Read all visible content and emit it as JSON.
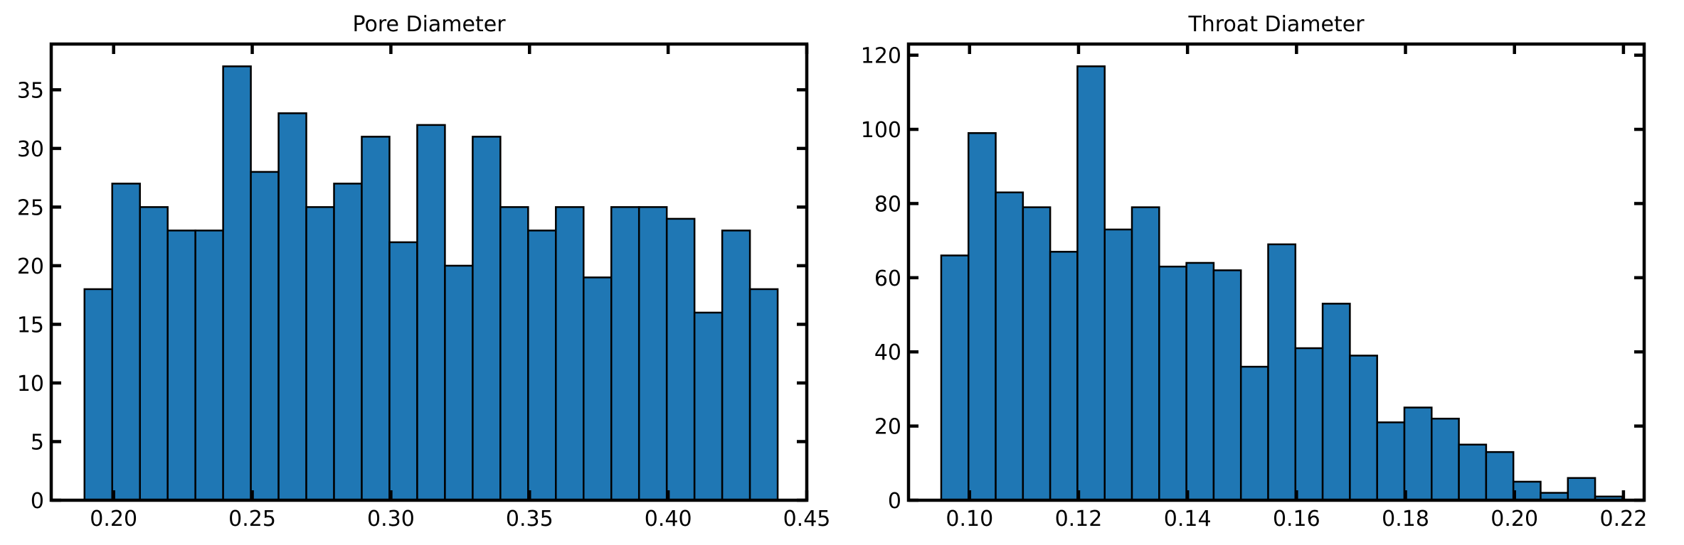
{
  "chart_data": [
    {
      "type": "bar",
      "title": "Pore Diameter",
      "xlabel": "",
      "ylabel": "",
      "xlim": [
        0.1775,
        0.45
      ],
      "ylim": [
        0,
        38.9
      ],
      "xticks": [
        0.2,
        0.25,
        0.3,
        0.35,
        0.4,
        0.45
      ],
      "xtick_labels": [
        "0.20",
        "0.25",
        "0.30",
        "0.35",
        "0.40",
        "0.45"
      ],
      "yticks": [
        0,
        5,
        10,
        15,
        20,
        25,
        30,
        35
      ],
      "ytick_labels": [
        "0",
        "5",
        "10",
        "15",
        "20",
        "25",
        "30",
        "35"
      ],
      "bin_start": 0.1895,
      "bin_width": 0.01,
      "values": [
        18,
        27,
        25,
        23,
        23,
        37,
        28,
        33,
        25,
        27,
        31,
        22,
        32,
        20,
        31,
        25,
        23,
        25,
        19,
        25,
        25,
        24,
        16,
        23,
        18
      ],
      "color": "#1f77b4",
      "edgecolor": "#000000"
    },
    {
      "type": "bar",
      "title": "Throat Diameter",
      "xlabel": "",
      "ylabel": "",
      "xlim": [
        0.0888,
        0.2238
      ],
      "ylim": [
        0,
        123
      ],
      "xticks": [
        0.1,
        0.12,
        0.14,
        0.16,
        0.18,
        0.2,
        0.22
      ],
      "xtick_labels": [
        "0.10",
        "0.12",
        "0.14",
        "0.16",
        "0.18",
        "0.20",
        "0.22"
      ],
      "yticks": [
        0,
        20,
        40,
        60,
        80,
        100,
        120
      ],
      "ytick_labels": [
        "0",
        "20",
        "40",
        "60",
        "80",
        "100",
        "120"
      ],
      "bin_start": 0.0948,
      "bin_width": 0.005,
      "values": [
        66,
        99,
        83,
        79,
        67,
        117,
        73,
        79,
        63,
        64,
        62,
        36,
        69,
        41,
        53,
        39,
        21,
        25,
        22,
        15,
        13,
        5,
        2,
        6,
        1
      ],
      "color": "#1f77b4",
      "edgecolor": "#000000"
    }
  ]
}
